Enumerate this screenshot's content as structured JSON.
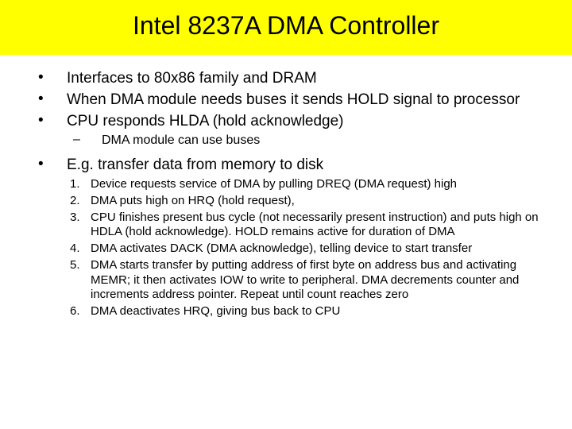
{
  "title": "Intel 8237A DMA Controller",
  "colors": {
    "title_bg": "#ffff00",
    "text": "#000000",
    "page_bg": "#ffffff"
  },
  "fonts": {
    "title_size": 32,
    "bullet_size": 19,
    "sub_bullet_size": 16,
    "num_size": 15
  },
  "bullets": {
    "b1": "Interfaces to 80x86 family and DRAM",
    "b2": "When DMA module needs buses it sends HOLD signal to processor",
    "b3": "CPU responds HLDA (hold acknowledge)",
    "b3_sub1": "DMA module can use buses",
    "b4": "E.g. transfer data from memory to disk"
  },
  "numbered": {
    "n1": "Device requests service of DMA by pulling DREQ (DMA request) high",
    "n2": "DMA puts high on HRQ (hold request),",
    "n3": "CPU finishes present bus cycle (not necessarily present instruction) and puts high on HDLA (hold acknowledge). HOLD remains active for duration of DMA",
    "n4": "DMA activates DACK (DMA acknowledge), telling device to start transfer",
    "n5": "DMA starts transfer by putting address of first byte on address bus and activating MEMR; it then activates IOW to write to peripheral. DMA decrements counter and increments address pointer.  Repeat until count reaches zero",
    "n6": "DMA deactivates HRQ, giving bus back to CPU"
  }
}
